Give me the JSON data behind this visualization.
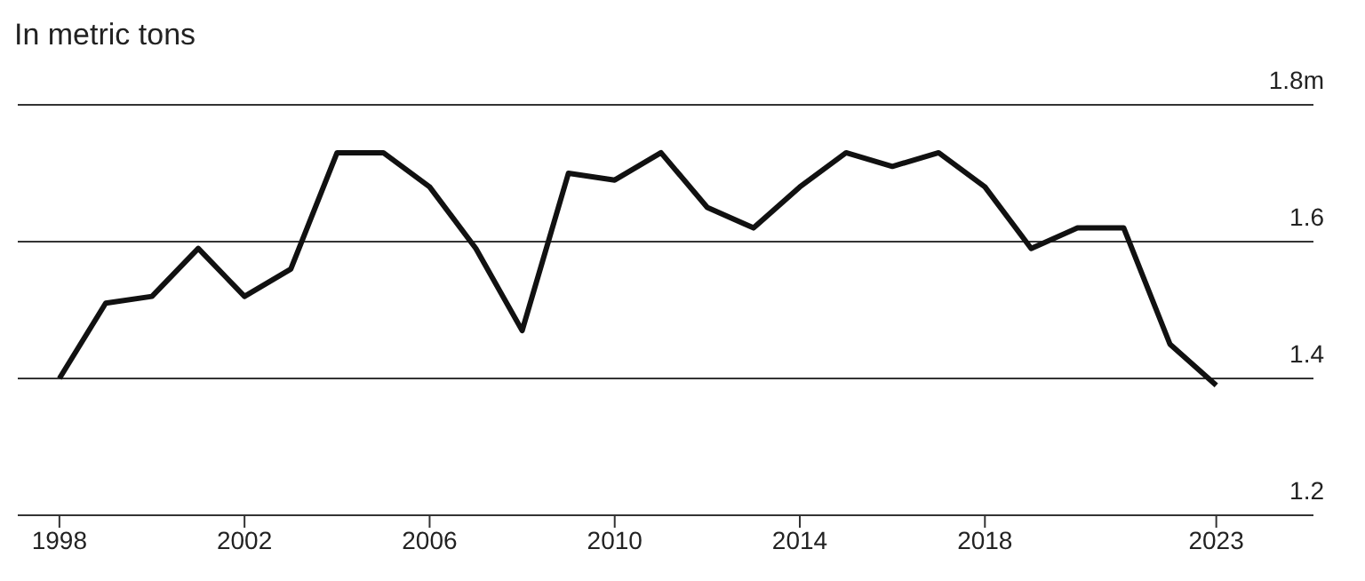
{
  "chart_data": {
    "type": "line",
    "title": "In metric tons",
    "x": [
      1998,
      1999,
      2000,
      2001,
      2002,
      2003,
      2004,
      2005,
      2006,
      2007,
      2008,
      2009,
      2010,
      2011,
      2012,
      2013,
      2014,
      2015,
      2016,
      2017,
      2018,
      2019,
      2020,
      2021,
      2022,
      2023
    ],
    "series": [
      {
        "color": "#111111",
        "values": [
          1.4,
          1.51,
          1.52,
          1.59,
          1.52,
          1.56,
          1.73,
          1.73,
          1.68,
          1.59,
          1.47,
          1.7,
          1.69,
          1.73,
          1.65,
          1.62,
          1.68,
          1.73,
          1.71,
          1.73,
          1.68,
          1.59,
          1.62,
          1.62,
          1.45,
          1.39
        ]
      }
    ],
    "xlim": [
      1997.1,
      2025.1
    ],
    "xticks": [
      1998,
      2002,
      2006,
      2010,
      2014,
      2018,
      2023
    ],
    "ylim": [
      1.2,
      1.8
    ],
    "yticks": [
      1.2,
      1.4,
      1.6,
      {
        "value": 1.8,
        "label": "1.8m"
      }
    ],
    "grid": "y"
  }
}
